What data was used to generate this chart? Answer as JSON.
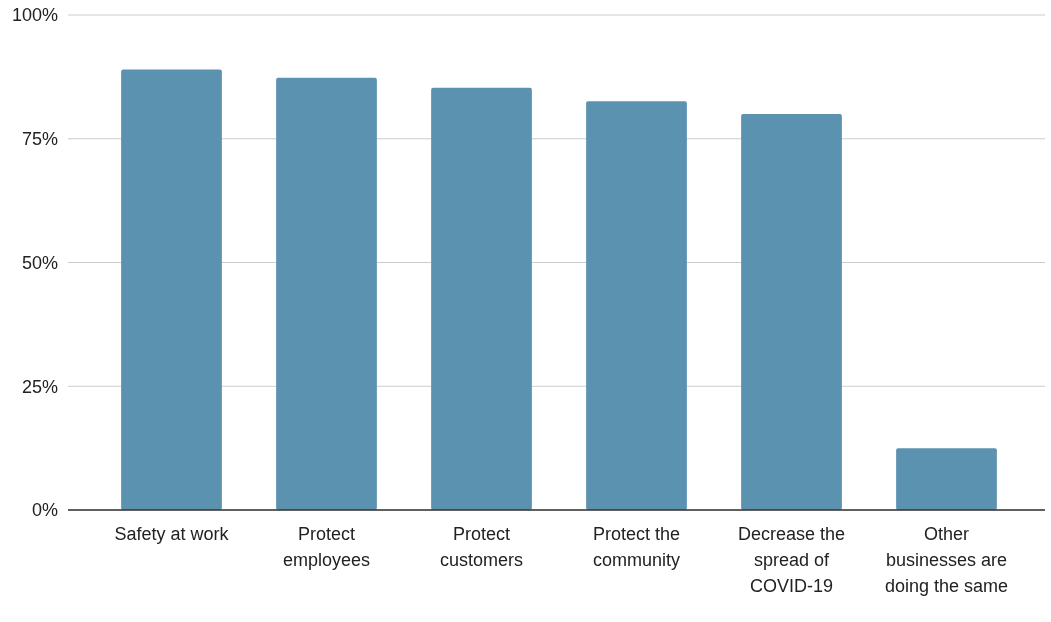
{
  "chart_data": {
    "type": "bar",
    "categories": [
      "Safety at work",
      "Protect employees",
      "Protect customers",
      "Protect the community",
      "Decrease the spread of COVID-19",
      "Other businesses are doing the same"
    ],
    "values": [
      89,
      87.3,
      85.3,
      82.6,
      80,
      12.5
    ],
    "color": "#5b92af",
    "ylim": [
      0,
      100
    ],
    "yticks": [
      {
        "value": 0,
        "label": "0%"
      },
      {
        "value": 25,
        "label": "25%"
      },
      {
        "value": 50,
        "label": "50%"
      },
      {
        "value": 75,
        "label": "75%"
      },
      {
        "value": 100,
        "label": "100%"
      }
    ],
    "grid": "y"
  }
}
